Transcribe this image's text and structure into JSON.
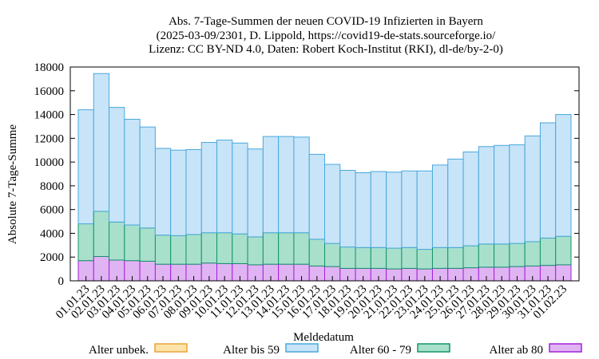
{
  "chart_data": {
    "type": "bar",
    "stacked": true,
    "title_lines": [
      "Abs. 7-Tage-Summen der neuen COVID-19 Infizierten in Bayern",
      "(2025-03-09/2301, D. Lippold, https://covid19-de-stats.sourceforge.io/",
      "Lizenz: CC BY-ND 4.0, Daten: Robert Koch-Institut (RKI), dl-de/by-2-0)"
    ],
    "xlabel": "Meldedatum",
    "ylabel": "Absolute 7-Tage-Summe",
    "ylim": [
      0,
      18000
    ],
    "yticks": [
      0,
      2000,
      4000,
      6000,
      8000,
      10000,
      12000,
      14000,
      16000,
      18000
    ],
    "categories": [
      "01.01.23",
      "02.01.23",
      "03.01.23",
      "04.01.23",
      "05.01.23",
      "06.01.23",
      "07.01.23",
      "08.01.23",
      "09.01.23",
      "10.01.23",
      "11.01.23",
      "12.01.23",
      "13.01.23",
      "14.01.23",
      "15.01.23",
      "16.01.23",
      "17.01.23",
      "18.01.23",
      "19.01.23",
      "20.01.23",
      "21.01.23",
      "22.01.23",
      "23.01.23",
      "24.01.23",
      "25.01.23",
      "26.01.23",
      "27.01.23",
      "28.01.23",
      "29.01.23",
      "30.01.23",
      "31.01.23",
      "01.02.23"
    ],
    "series": [
      {
        "name": "Alter unbek.",
        "fill": "#fde3a8",
        "stroke": "#e8a33c",
        "values": [
          0,
          0,
          0,
          0,
          0,
          0,
          0,
          0,
          0,
          0,
          0,
          0,
          0,
          0,
          0,
          0,
          0,
          0,
          0,
          0,
          0,
          0,
          0,
          0,
          0,
          0,
          0,
          0,
          0,
          0,
          0,
          0
        ]
      },
      {
        "name": "Alter bis 59",
        "fill": "#c8e4f8",
        "stroke": "#4aa8dc",
        "values": [
          9600,
          11600,
          9650,
          8900,
          8500,
          7300,
          7200,
          7150,
          7600,
          7800,
          7650,
          7400,
          8100,
          8100,
          8050,
          7150,
          6650,
          6450,
          6300,
          6400,
          6400,
          6450,
          6600,
          6950,
          7450,
          7900,
          8200,
          8300,
          8300,
          8900,
          9700,
          10250
        ]
      },
      {
        "name": "Alter 60 - 79",
        "fill": "#a8e0cc",
        "stroke": "#13946a",
        "values": [
          3100,
          3800,
          3200,
          3000,
          2800,
          2450,
          2400,
          2500,
          2550,
          2600,
          2500,
          2350,
          2650,
          2650,
          2650,
          2250,
          1950,
          1800,
          1750,
          1750,
          1750,
          1750,
          1650,
          1750,
          1750,
          1850,
          1950,
          1950,
          1950,
          2050,
          2300,
          2400
        ]
      },
      {
        "name": "Alter ab 80",
        "fill": "#e0b4f2",
        "stroke": "#a020d8",
        "values": [
          1700,
          2050,
          1750,
          1700,
          1650,
          1400,
          1400,
          1400,
          1500,
          1450,
          1450,
          1350,
          1400,
          1400,
          1400,
          1250,
          1200,
          1050,
          1050,
          1050,
          1000,
          1050,
          1000,
          1050,
          1050,
          1100,
          1150,
          1150,
          1200,
          1250,
          1300,
          1350
        ]
      }
    ],
    "legend": "bottom"
  }
}
